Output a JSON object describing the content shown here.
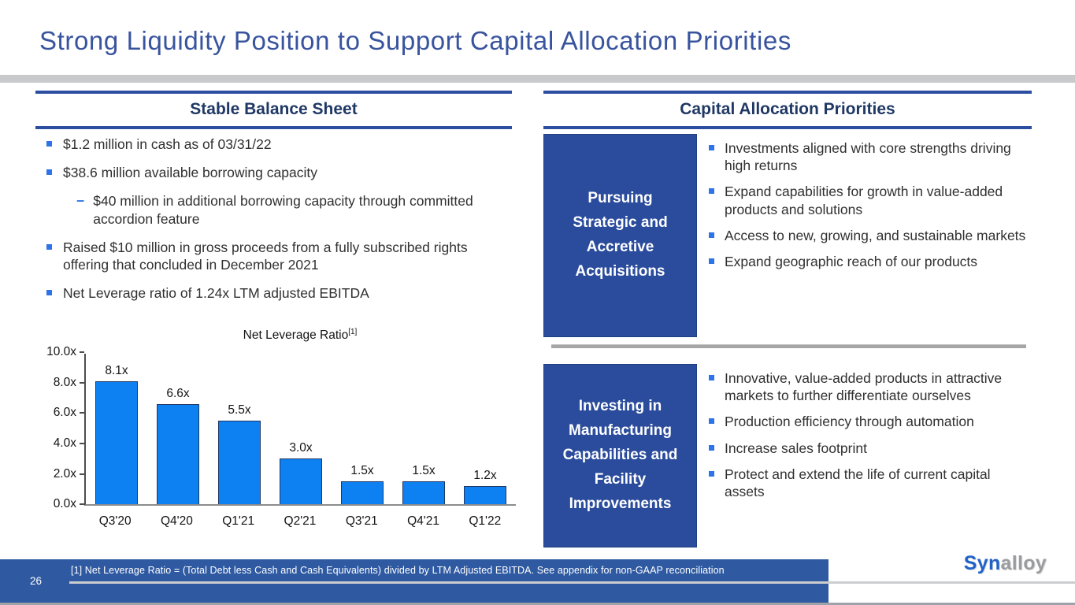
{
  "slide": {
    "title": "Strong Liquidity Position to Support Capital Allocation Priorities",
    "page_number": "26",
    "footnote": "[1] Net Leverage Ratio = (Total Debt less Cash and Cash Equivalents) divided by LTM Adjusted EBITDA. See appendix for non-GAAP reconciliation",
    "logo": {
      "part1": "Syn",
      "part2": "alloy"
    }
  },
  "left_panel": {
    "header": "Stable Balance Sheet",
    "bullets": [
      {
        "level": 1,
        "text": "$1.2 million in cash as of 03/31/22"
      },
      {
        "level": 1,
        "text": "$38.6 million available borrowing capacity"
      },
      {
        "level": 2,
        "text": "$40 million in additional borrowing capacity through committed accordion feature"
      },
      {
        "level": 1,
        "text": "Raised $10 million in gross proceeds from a fully subscribed rights offering that concluded in December 2021"
      },
      {
        "level": 1,
        "text": "Net Leverage ratio of 1.24x LTM adjusted EBITDA"
      }
    ]
  },
  "chart_data": {
    "type": "bar",
    "title": "Net Leverage Ratio",
    "title_superscript": "[1]",
    "categories": [
      "Q3'20",
      "Q4'20",
      "Q1'21",
      "Q2'21",
      "Q3'21",
      "Q4'21",
      "Q1'22"
    ],
    "values": [
      8.1,
      6.6,
      5.5,
      3.0,
      1.5,
      1.5,
      1.2
    ],
    "data_labels": [
      "8.1x",
      "6.6x",
      "5.5x",
      "3.0x",
      "1.5x",
      "1.5x",
      "1.2x"
    ],
    "ylim": [
      0,
      10
    ],
    "ytick_labels": [
      "0.0x",
      "2.0x",
      "4.0x",
      "6.0x",
      "8.0x",
      "10.0x"
    ],
    "grid": false,
    "legend": false,
    "bar_color": "#0d80f2",
    "bar_border_color": "#1f3864"
  },
  "right_panel": {
    "header": "Capital Allocation Priorities",
    "rows": [
      {
        "box_label": "Pursuing Strategic and Accretive Acquisitions",
        "bullets": [
          "Investments aligned with core strengths driving high returns",
          "Expand capabilities for growth in value-added products and solutions",
          "Access to new, growing, and sustainable markets",
          "Expand geographic reach of our products"
        ]
      },
      {
        "box_label": "Investing in Manufacturing Capabilities and Facility Improvements",
        "bullets": [
          "Innovative, value-added products in attractive markets to further differentiate ourselves",
          "Production efficiency through automation",
          "Increase sales footprint",
          "Protect and extend the life of current capital assets"
        ]
      }
    ]
  },
  "colors": {
    "title_blue": "#39549e",
    "header_navy": "#1f3864",
    "rule_blue": "#2b4ea0",
    "bullet_blue": "#2e74e8",
    "box_blue": "#2b4c9c",
    "footer_blue": "#2f5aa2",
    "divider_gray": "#a6a6a6",
    "band_gray": "#c8cacc"
  }
}
